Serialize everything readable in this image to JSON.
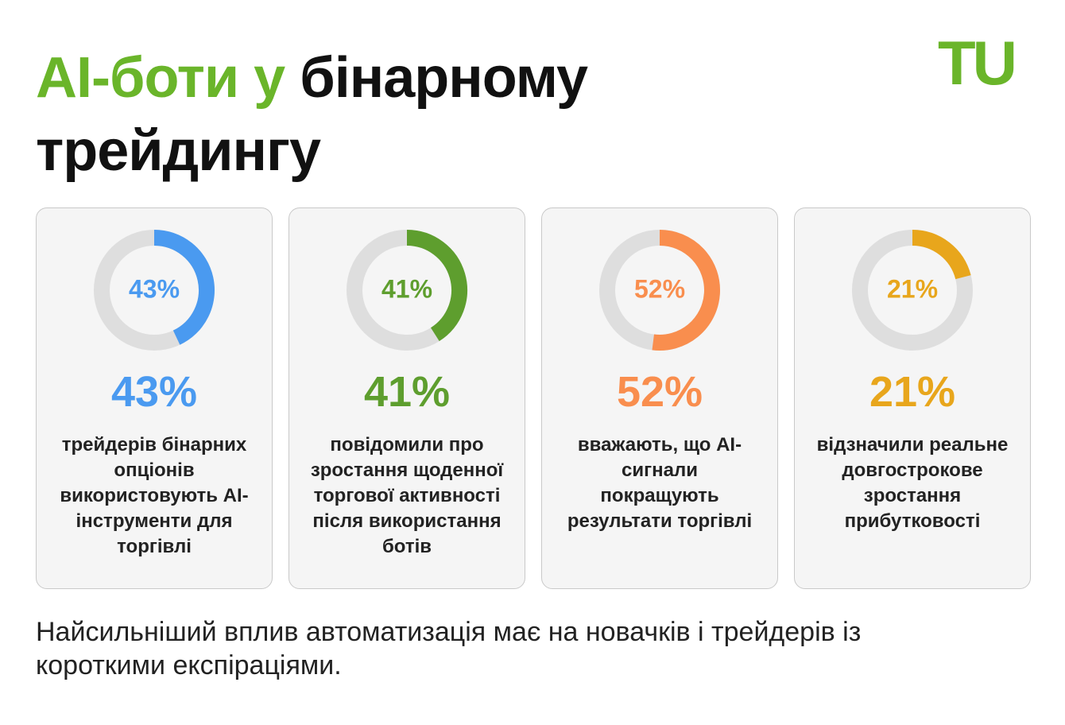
{
  "title": {
    "highlight": "AI-боти у",
    "rest": "бінарному трейдингу"
  },
  "logo": "TU",
  "chart_data": [
    {
      "type": "donut",
      "values": [
        43
      ],
      "value_labels": [
        "43%"
      ],
      "color": "#4a9af0",
      "description": "трейдерів бінарних опціонів використовують AI-інструменти для торгівлі"
    },
    {
      "type": "donut",
      "values": [
        41
      ],
      "value_labels": [
        "41%"
      ],
      "color": "#5e9e2e",
      "description": "повідомили про зростання щоденної торгової активності після використання ботів"
    },
    {
      "type": "donut",
      "values": [
        52
      ],
      "value_labels": [
        "52%"
      ],
      "color": "#f98e4e",
      "description": "вважають, що AI-сигнали покращують результати торгівлі"
    },
    {
      "type": "donut",
      "values": [
        21
      ],
      "value_labels": [
        "21%"
      ],
      "color": "#e8a61c",
      "description": "відзначили реальне довгострокове зростання прибутковості"
    }
  ],
  "footnote": "Найсильніший вплив автоматизація має на новачків і трейдерів із короткими експіраціями."
}
